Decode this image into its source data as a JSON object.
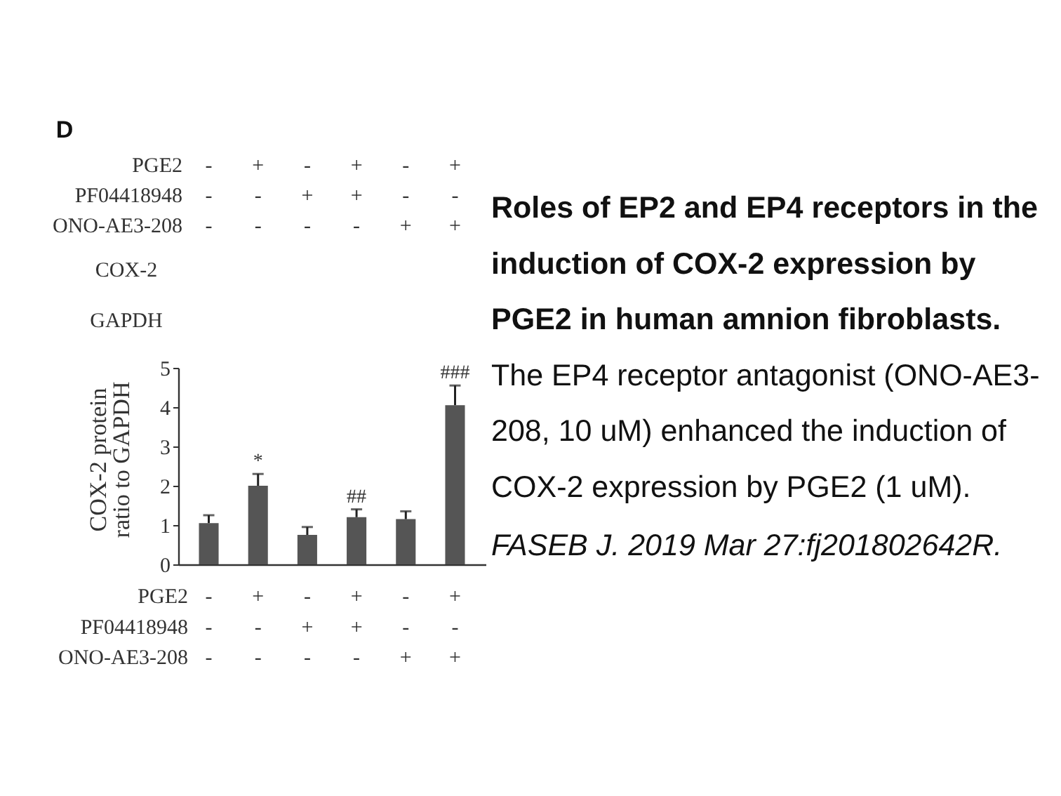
{
  "chart_data": {
    "type": "bar",
    "title": "Roles of EP2 and EP4 receptors in the\ninduction of COX-2 expression by\nPGE2 in human amnion fibroblasts.",
    "subtitle": "The EP4 receptor antagonist (ONO-AE3-\n208, 10 uM) enhanced the induction of\nCOX-2 expression by PGE2 (1 uM).",
    "xlabel": "PGE2\nPF04418948\nONO-AE3-208",
    "ylabel": "COX-2 protein\nratio to GAPDH",
    "categories": [
      "-\n-\n-",
      "+\n-\n-",
      "-\n+\n-",
      "+\n+\n-",
      "-\n-\n+",
      "+\n-\n+"
    ],
    "values": [
      1.05,
      2.0,
      0.75,
      1.2,
      1.15,
      4.05
    ],
    "errors": [
      [
        1.05,
        1.25
      ],
      [
        2.0,
        2.3
      ],
      [
        0.75,
        0.95
      ],
      [
        1.2,
        1.4
      ],
      [
        1.15,
        1.35
      ],
      [
        4.05,
        4.55
      ]
    ],
    "value_labels": [
      null,
      "*",
      null,
      "##",
      null,
      "###"
    ],
    "color": "#555555",
    "ylim": [
      0,
      5
    ],
    "yticks": [
      0,
      1,
      2,
      3,
      4,
      5
    ],
    "annotations": [
      "D",
      "PGE2\nPF04418948\nONO-AE3-208",
      "-\n-\n-",
      "+\n-\n-",
      "-\n+\n-",
      "+\n+\n-",
      "-\n-\n+",
      "+\n-\n+",
      "COX-2",
      "GAPDH",
      "FASEB J. 2019 Mar 27:fj201802642R."
    ]
  }
}
